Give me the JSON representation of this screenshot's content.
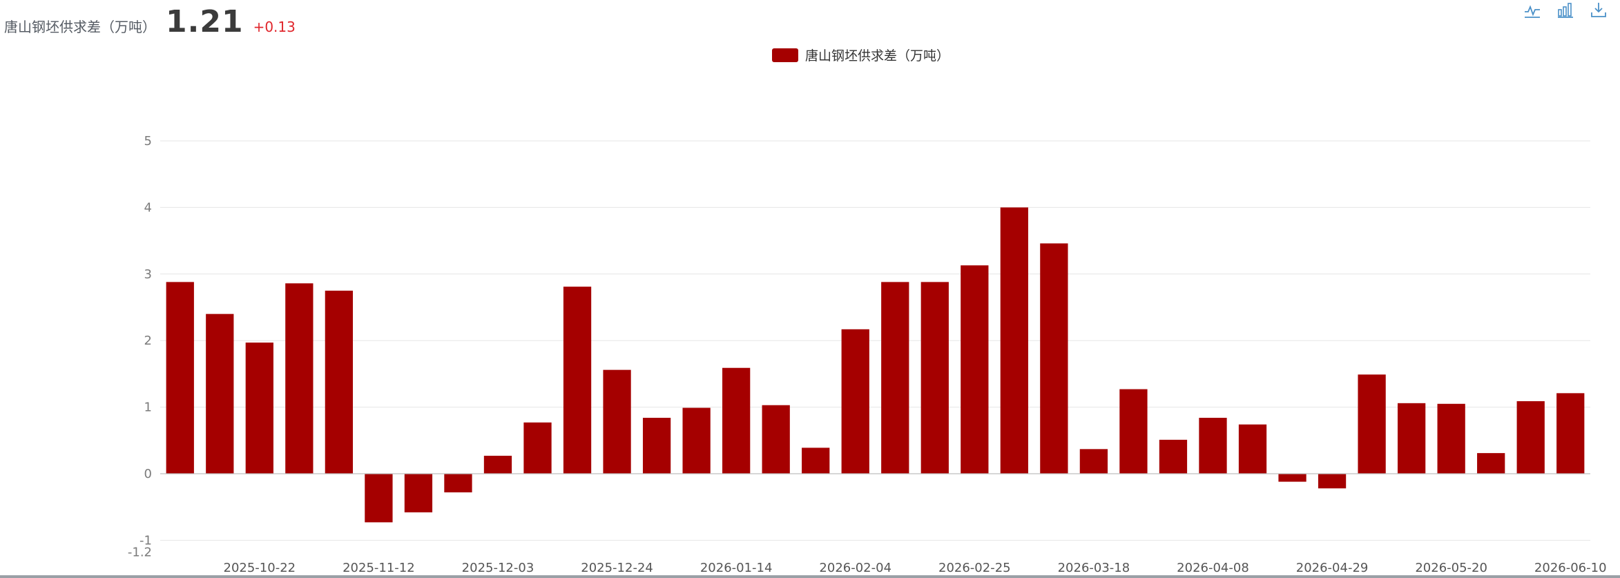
{
  "header": {
    "series_name": "唐山钢坯供求差（万吨）",
    "latest_value": "1.21",
    "change": "+0.13"
  },
  "toolbar": {
    "icons": [
      "line-chart-icon",
      "bar-chart-icon",
      "download-icon"
    ]
  },
  "colors": {
    "bar": "#a50000",
    "grid": "#e6e6e6",
    "change_positive": "#e0262c",
    "icon": "#4a90c8"
  },
  "chart_data": {
    "type": "bar",
    "legend": [
      "唐山钢坯供求差（万吨）"
    ],
    "legend_position": "top-center",
    "grid": true,
    "ylim": [
      -1.2,
      5
    ],
    "y_ticks": [
      "5",
      "4",
      "3",
      "2",
      "1",
      "0",
      "-1",
      "-1.2"
    ],
    "categories": [
      "2025-10-08",
      "2025-10-15",
      "2025-10-22",
      "2025-10-29",
      "2025-11-05",
      "2025-11-12",
      "2025-11-19",
      "2025-11-26",
      "2025-12-03",
      "2025-12-10",
      "2025-12-17",
      "2025-12-24",
      "2025-12-31",
      "2026-01-07",
      "2026-01-14",
      "2026-01-21",
      "2026-01-28",
      "2026-02-04",
      "2026-02-11",
      "2026-02-18",
      "2026-02-25",
      "2026-03-04",
      "2026-03-11",
      "2026-03-18",
      "2026-03-25",
      "2026-04-01",
      "2026-04-08",
      "2026-04-15",
      "2026-04-22",
      "2026-04-29",
      "2026-05-06",
      "2026-05-13",
      "2026-05-20",
      "2026-05-27",
      "2026-06-03",
      "2026-06-10"
    ],
    "x_tick_labels": [
      "2025-10-22",
      "2025-11-12",
      "2025-12-03",
      "2025-12-24",
      "2026-01-14",
      "2026-02-04",
      "2026-02-25",
      "2026-03-18",
      "2026-04-08",
      "2026-04-29",
      "2026-05-20",
      "2026-06-10"
    ],
    "series": [
      {
        "name": "唐山钢坯供求差（万吨）",
        "values": [
          2.88,
          2.4,
          1.97,
          2.86,
          2.75,
          -0.73,
          -0.58,
          -0.28,
          0.27,
          0.77,
          2.81,
          1.56,
          0.84,
          0.99,
          1.59,
          1.03,
          0.39,
          2.17,
          2.88,
          2.88,
          3.13,
          4.0,
          3.46,
          0.37,
          1.27,
          0.51,
          0.84,
          0.74,
          -0.12,
          -0.22,
          1.49,
          1.06,
          1.05,
          0.31,
          1.09,
          1.21
        ]
      }
    ]
  }
}
